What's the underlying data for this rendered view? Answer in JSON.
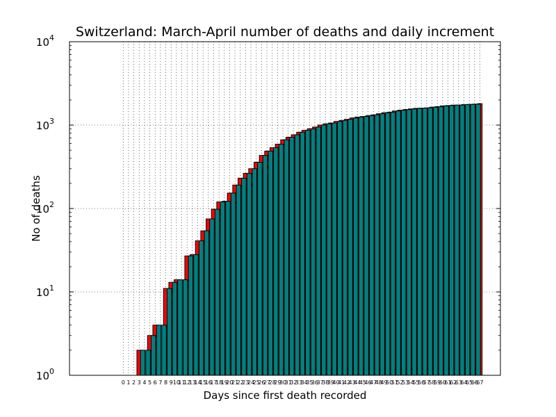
{
  "chart_data": {
    "type": "bar",
    "title": "Switzerland: March-April number of deaths and daily increment",
    "xlabel": "Days since first death recorded",
    "ylabel": "No of deaths",
    "yscale": "log",
    "ylim": [
      1,
      10000
    ],
    "yticks": [
      {
        "base": "10",
        "exp": "0"
      },
      {
        "base": "10",
        "exp": "1"
      },
      {
        "base": "10",
        "exp": "2"
      },
      {
        "base": "10",
        "exp": "3"
      },
      {
        "base": "10",
        "exp": "4"
      }
    ],
    "grid": true,
    "colors": {
      "cumulative": "#008080",
      "increment": "#ff0000",
      "edge": "#000000"
    },
    "x": [
      0,
      1,
      2,
      3,
      4,
      5,
      6,
      7,
      8,
      9,
      10,
      11,
      12,
      13,
      14,
      15,
      16,
      17,
      18,
      19,
      20,
      21,
      22,
      23,
      24,
      25,
      26,
      27,
      28,
      29,
      30,
      31,
      32,
      33,
      34,
      35,
      36,
      37,
      38,
      39,
      40,
      41,
      42,
      43,
      44,
      45,
      46,
      47,
      48,
      49,
      50,
      51,
      52,
      53,
      54,
      55,
      56,
      57,
      58,
      59,
      60,
      61,
      62,
      63,
      64,
      65,
      66,
      67
    ],
    "values": [
      1,
      1,
      1,
      2,
      2,
      3,
      4,
      4,
      11,
      13,
      14,
      14,
      27,
      28,
      41,
      54,
      75,
      98,
      120,
      122,
      153,
      191,
      231,
      264,
      300,
      359,
      433,
      488,
      536,
      591,
      666,
      715,
      765,
      821,
      867,
      904,
      948,
      1002,
      1036,
      1059,
      1106,
      1138,
      1174,
      1217,
      1249,
      1268,
      1299,
      1327,
      1368,
      1408,
      1429,
      1478,
      1509,
      1536,
      1564,
      1589,
      1599,
      1610,
      1640,
      1665,
      1701,
      1716,
      1737,
      1741,
      1762,
      1771,
      1783,
      1806
    ]
  }
}
